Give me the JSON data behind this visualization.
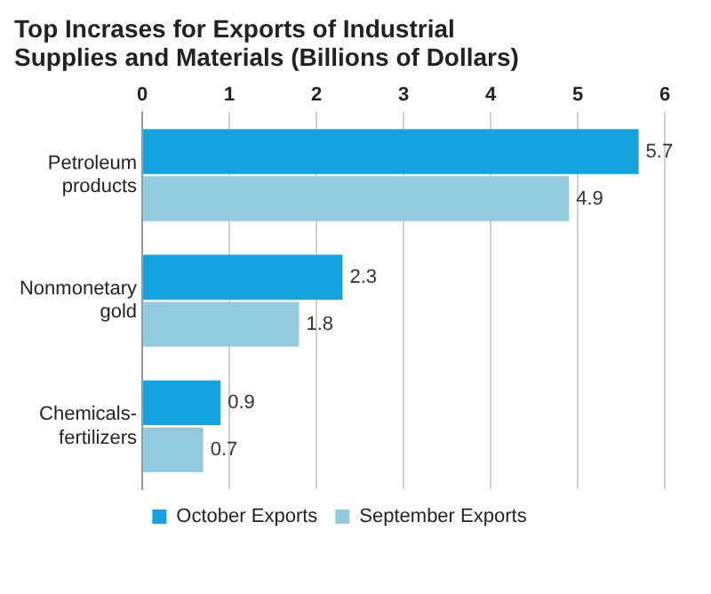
{
  "chart_data": {
    "type": "bar",
    "title": "Top Incrases for Exports of Industrial Supplies and Materials (Billions of Dollars)",
    "orientation": "horizontal",
    "categories": [
      "Petroleum products",
      "Nonmonetary gold",
      "Chemicals-fertilizers"
    ],
    "series": [
      {
        "name": "October Exports",
        "color": "#13a4e0",
        "values": [
          5.7,
          2.3,
          0.9
        ]
      },
      {
        "name": "September Exports",
        "color": "#92cbde",
        "values": [
          4.9,
          1.8,
          0.7
        ]
      }
    ],
    "xlim": [
      0,
      6
    ],
    "xticks": [
      0,
      1,
      2,
      3,
      4,
      5,
      6
    ],
    "grid": "x",
    "legend": "bottom",
    "data_labels": true
  }
}
